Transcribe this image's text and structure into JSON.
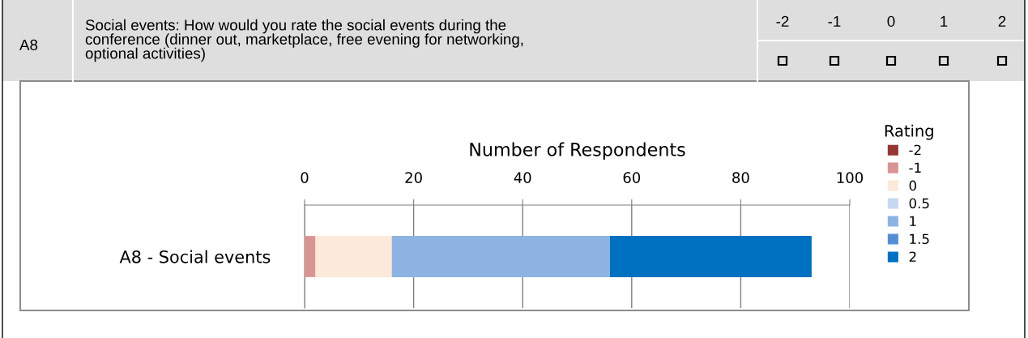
{
  "chart_data": {
    "type": "bar",
    "orientation": "horizontal",
    "stacked": true,
    "title": "Social events: How would you rate the social events during the\nconference (dinner out, marketplace, free evening for networking,\noptional activities)",
    "annotations": [
      "A8",
      "-2",
      "-1",
      "0",
      "1",
      "2"
    ],
    "xlabel": "Number of Respondents",
    "legend_title": "Rating",
    "categories": [
      "A8 - Social events"
    ],
    "series": [
      {
        "name": "-2",
        "color": "#943634",
        "values": [
          0
        ]
      },
      {
        "name": "-1",
        "color": "#d99594",
        "values": [
          2
        ]
      },
      {
        "name": "0",
        "color": "#fde9d9",
        "values": [
          14
        ]
      },
      {
        "name": "0.5",
        "color": "#c6d9f1",
        "values": [
          0
        ]
      },
      {
        "name": "1",
        "color": "#8db3e2",
        "values": [
          40
        ]
      },
      {
        "name": "1.5",
        "color": "#558ed5",
        "values": [
          0
        ]
      },
      {
        "name": "2",
        "color": "#0070c0",
        "values": [
          37
        ]
      }
    ],
    "xlim": [
      0,
      100
    ],
    "xticks": [
      0,
      20,
      40,
      60,
      80,
      100
    ],
    "grid": "x",
    "legend": "right"
  }
}
